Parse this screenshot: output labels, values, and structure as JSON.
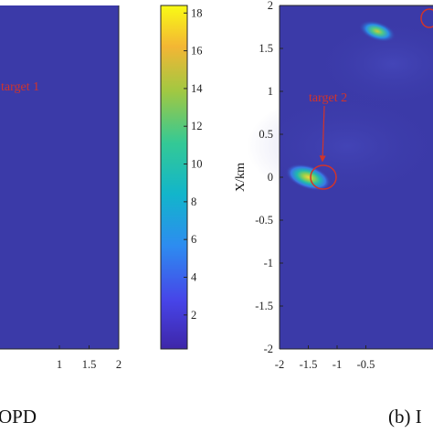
{
  "colors": {
    "background_field": "#3b3aa8",
    "annotation": "#d0342c",
    "axis": "#262626",
    "colormap": [
      "#3e26a8",
      "#4744e8",
      "#2d8cf0",
      "#12b5cb",
      "#34c995",
      "#a1c842",
      "#f3b634",
      "#f9fb15"
    ]
  },
  "chart_data": [
    {
      "type": "heatmap",
      "panel": "left",
      "caption": "OPD",
      "x_ticks": [
        "1",
        "1.5",
        "2"
      ],
      "xlim": [
        -2,
        2
      ],
      "annotations": [
        {
          "text": "target 1"
        }
      ]
    },
    {
      "type": "colorbar",
      "ticks": [
        "2",
        "4",
        "6",
        "8",
        "10",
        "12",
        "14",
        "16",
        "18"
      ],
      "range": [
        0.2,
        18.4
      ]
    },
    {
      "type": "heatmap",
      "panel": "right",
      "caption": "(b) I",
      "ylabel": "X/km",
      "x_ticks": [
        "-2",
        "-1.5",
        "-1",
        "-0.5"
      ],
      "y_ticks": [
        "2",
        "1.5",
        "1",
        "0.5",
        "0",
        "-0.5",
        "-1",
        "-1.5",
        "-2"
      ],
      "xlim": [
        -2,
        2
      ],
      "ylim": [
        -2,
        2
      ],
      "blobs": [
        {
          "x": -1.5,
          "y": 0.0,
          "peak": 16
        },
        {
          "x": -0.3,
          "y": 1.7,
          "peak": 13
        }
      ],
      "annotations": [
        {
          "text": "target 2",
          "x": -1.5,
          "y": 0.0
        }
      ]
    }
  ]
}
